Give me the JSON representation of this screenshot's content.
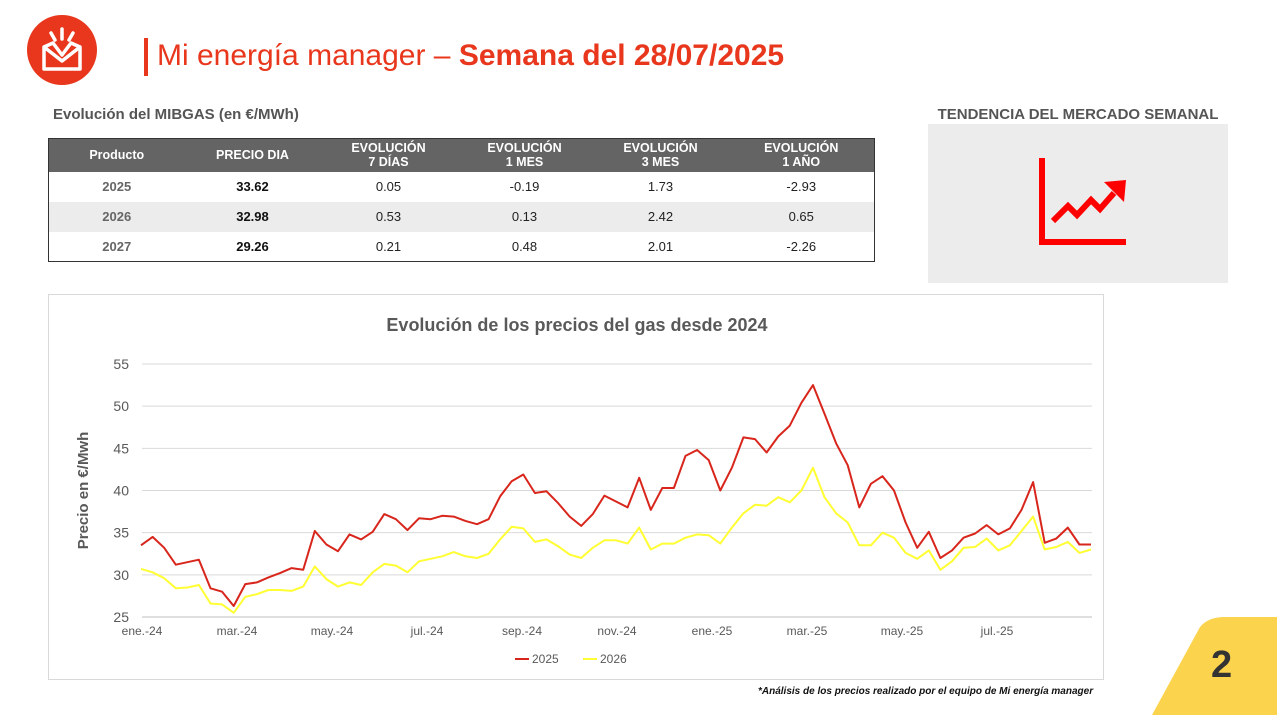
{
  "header": {
    "title_light": "Mi energía manager – ",
    "title_bold": "Semana del 28/07/2025"
  },
  "table": {
    "caption": "Evolución del MIBGAS (en €/MWh)",
    "headers": [
      {
        "line1": "Producto",
        "line2": ""
      },
      {
        "line1": "PRECIO DIA",
        "line2": ""
      },
      {
        "line1": "EVOLUCIÓN",
        "line2": "7 DÍAS"
      },
      {
        "line1": "EVOLUCIÓN",
        "line2": "1 MES"
      },
      {
        "line1": "EVOLUCIÓN",
        "line2": "3 MES"
      },
      {
        "line1": "EVOLUCIÓN",
        "line2": "1 AÑO"
      }
    ],
    "rows": [
      {
        "year": "2025",
        "price": "33.62",
        "d7": "0.05",
        "m1": "-0.19",
        "m3": "1.73",
        "y1": "-2.93"
      },
      {
        "year": "2026",
        "price": "32.98",
        "d7": "0.53",
        "m1": "0.13",
        "m3": "2.42",
        "y1": "0.65"
      },
      {
        "year": "2027",
        "price": "29.26",
        "d7": "0.21",
        "m1": "0.48",
        "m3": "2.01",
        "y1": "-2.26"
      }
    ]
  },
  "trend": {
    "title": "TENDENCIA DEL MERCADO SEMANAL",
    "icon": "trend-up-icon",
    "color": "#ff0000"
  },
  "footnote": "*Análisis de los precios realizado por el equipo de Mi energía manager",
  "page_number": "2",
  "colors": {
    "brand_red": "#e8371c",
    "series_2025": "#d8261c",
    "series_2026": "#ffff33",
    "corner": "#fcd34d"
  },
  "chart_data": {
    "type": "line",
    "title": "Evolución de los precios del gas desde 2024",
    "xlabel": "",
    "ylabel": "Precio en €/Mwh",
    "ylim": [
      25,
      55
    ],
    "yticks": [
      25,
      30,
      35,
      40,
      45,
      50,
      55
    ],
    "xtick_labels": [
      "ene.-24",
      "mar.-24",
      "may.-24",
      "jul.-24",
      "sep.-24",
      "nov.-24",
      "ene.-25",
      "mar.-25",
      "may.-25",
      "jul.-25"
    ],
    "grid": "horizontal",
    "legend": "bottom",
    "series": [
      {
        "name": "2025",
        "color": "#d8261c",
        "values": [
          33.5,
          34.5,
          33.2,
          31.2,
          31.5,
          31.8,
          28.4,
          28.0,
          26.3,
          28.9,
          29.1,
          29.7,
          30.2,
          30.8,
          30.6,
          35.2,
          33.6,
          32.8,
          34.8,
          34.2,
          35.1,
          37.2,
          36.6,
          35.3,
          36.7,
          36.6,
          37.0,
          36.9,
          36.4,
          36.0,
          36.6,
          39.3,
          41.1,
          41.9,
          39.7,
          39.9,
          38.5,
          36.9,
          35.8,
          37.2,
          39.4,
          38.7,
          38.0,
          41.5,
          37.7,
          40.3,
          40.3,
          44.1,
          44.8,
          43.6,
          40.0,
          42.7,
          46.3,
          46.1,
          44.5,
          46.4,
          47.7,
          50.4,
          52.5,
          49.1,
          45.6,
          43.0,
          38.0,
          40.8,
          41.7,
          40.0,
          36.2,
          33.2,
          35.1,
          32.0,
          32.9,
          34.4,
          34.9,
          35.9,
          34.8,
          35.5,
          37.7,
          41.0,
          33.8,
          34.3,
          35.6,
          33.6,
          33.6
        ]
      },
      {
        "name": "2026",
        "color": "#ffff33",
        "values": [
          30.7,
          30.3,
          29.6,
          28.4,
          28.5,
          28.8,
          26.6,
          26.5,
          25.5,
          27.4,
          27.7,
          28.2,
          28.2,
          28.1,
          28.6,
          31.0,
          29.5,
          28.6,
          29.1,
          28.8,
          30.3,
          31.3,
          31.1,
          30.3,
          31.6,
          31.9,
          32.2,
          32.7,
          32.2,
          32.0,
          32.5,
          34.2,
          35.7,
          35.5,
          33.9,
          34.2,
          33.4,
          32.4,
          32.0,
          33.2,
          34.1,
          34.1,
          33.7,
          35.6,
          33.0,
          33.7,
          33.7,
          34.4,
          34.8,
          34.7,
          33.7,
          35.6,
          37.3,
          38.3,
          38.2,
          39.2,
          38.6,
          40.0,
          42.7,
          39.2,
          37.3,
          36.2,
          33.5,
          33.5,
          35.0,
          34.4,
          32.6,
          31.9,
          32.9,
          30.6,
          31.6,
          33.2,
          33.3,
          34.3,
          32.9,
          33.5,
          35.2,
          36.9,
          33.0,
          33.3,
          33.9,
          32.6,
          33.0
        ]
      }
    ]
  }
}
